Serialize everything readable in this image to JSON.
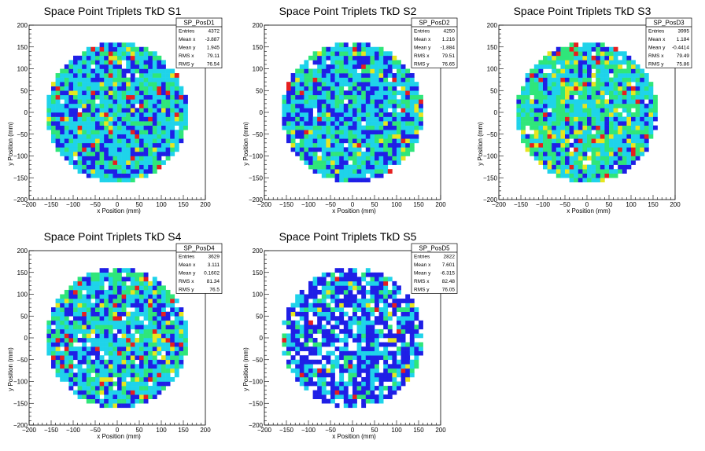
{
  "chart_data": [
    {
      "type": "heatmap",
      "title": "Space Point Triplets TkD S1",
      "xlabel": "x Position (mm)",
      "ylabel": "y Position (mm)",
      "xlim": [
        -200,
        200
      ],
      "ylim": [
        -200,
        200
      ],
      "xticks": [
        "−200",
        "−150",
        "−100",
        "−50",
        "0",
        "50",
        "100",
        "150",
        "200"
      ],
      "yticks": [
        "−200",
        "−150",
        "−100",
        "−50",
        "0",
        "50",
        "100",
        "150",
        "200"
      ],
      "region": {
        "shape": "disc",
        "radius_mm": 160
      },
      "stats": {
        "name": "SP_PosD1",
        "rows": [
          [
            "Entries",
            "4372"
          ],
          [
            "Mean x",
            "-3.887"
          ],
          [
            "Mean y",
            "1.945"
          ],
          [
            "RMS x",
            "79.11"
          ],
          [
            "RMS y",
            "76.54"
          ]
        ]
      },
      "color_weights": {
        "blue": 0.24,
        "cyan": 0.42,
        "green": 0.24,
        "yellow": 0.05,
        "red": 0.03,
        "white": 0.02
      }
    },
    {
      "type": "heatmap",
      "title": "Space Point Triplets TkD S2",
      "xlabel": "x Position (mm)",
      "ylabel": "y Position (mm)",
      "xlim": [
        -200,
        200
      ],
      "ylim": [
        -200,
        200
      ],
      "xticks": [
        "−200",
        "−150",
        "−100",
        "−50",
        "0",
        "50",
        "100",
        "150",
        "200"
      ],
      "yticks": [
        "−200",
        "−150",
        "−100",
        "−50",
        "0",
        "50",
        "100",
        "150",
        "200"
      ],
      "region": {
        "shape": "disc",
        "radius_mm": 160
      },
      "stats": {
        "name": "SP_PosD2",
        "rows": [
          [
            "Entries",
            "4250"
          ],
          [
            "Mean x",
            "1.216"
          ],
          [
            "Mean y",
            "-1.884"
          ],
          [
            "RMS x",
            "79.51"
          ],
          [
            "RMS y",
            "76.65"
          ]
        ]
      },
      "color_weights": {
        "blue": 0.28,
        "cyan": 0.42,
        "green": 0.21,
        "yellow": 0.03,
        "red": 0.02,
        "white": 0.04
      }
    },
    {
      "type": "heatmap",
      "title": "Space Point Triplets TkD S3",
      "xlabel": "x Position (mm)",
      "ylabel": "y Position (mm)",
      "xlim": [
        -200,
        200
      ],
      "ylim": [
        -200,
        200
      ],
      "xticks": [
        "−200",
        "−150",
        "−100",
        "−50",
        "0",
        "50",
        "100",
        "150",
        "200"
      ],
      "yticks": [
        "−200",
        "−150",
        "−100",
        "−50",
        "0",
        "50",
        "100",
        "150",
        "200"
      ],
      "region": {
        "shape": "disc",
        "radius_mm": 160
      },
      "stats": {
        "name": "SP_PosD3",
        "rows": [
          [
            "Entries",
            "3995"
          ],
          [
            "Mean x",
            "1.184"
          ],
          [
            "Mean y",
            "-0.4414"
          ],
          [
            "RMS x",
            "79.49"
          ],
          [
            "RMS y",
            "75.86"
          ]
        ]
      },
      "color_weights": {
        "blue": 0.12,
        "cyan": 0.36,
        "green": 0.34,
        "yellow": 0.1,
        "red": 0.04,
        "white": 0.04
      }
    },
    {
      "type": "heatmap",
      "title": "Space Point Triplets TkD S4",
      "xlabel": "x Position (mm)",
      "ylabel": "y Position (mm)",
      "xlim": [
        -200,
        200
      ],
      "ylim": [
        -200,
        200
      ],
      "xticks": [
        "−200",
        "−150",
        "−100",
        "−50",
        "0",
        "50",
        "100",
        "150",
        "200"
      ],
      "yticks": [
        "−200",
        "−150",
        "−100",
        "−50",
        "0",
        "50",
        "100",
        "150",
        "200"
      ],
      "region": {
        "shape": "disc",
        "radius_mm": 160
      },
      "stats": {
        "name": "SP_PosD4",
        "rows": [
          [
            "Entries",
            "3629"
          ],
          [
            "Mean x",
            "3.111"
          ],
          [
            "Mean y",
            "0.1602"
          ],
          [
            "RMS x",
            "81.34"
          ],
          [
            "RMS y",
            "76.5"
          ]
        ]
      },
      "color_weights": {
        "blue": 0.22,
        "cyan": 0.38,
        "green": 0.24,
        "yellow": 0.06,
        "red": 0.04,
        "white": 0.06
      }
    },
    {
      "type": "heatmap",
      "title": "Space Point Triplets TkD S5",
      "xlabel": "x Position (mm)",
      "ylabel": "y Position (mm)",
      "xlim": [
        -200,
        200
      ],
      "ylim": [
        -200,
        200
      ],
      "xticks": [
        "−200",
        "−150",
        "−100",
        "−50",
        "0",
        "50",
        "100",
        "150",
        "200"
      ],
      "yticks": [
        "−200",
        "−150",
        "−100",
        "−50",
        "0",
        "50",
        "100",
        "150",
        "200"
      ],
      "region": {
        "shape": "disc",
        "radius_mm": 160
      },
      "stats": {
        "name": "SP_PosD5",
        "rows": [
          [
            "Entries",
            "2822"
          ],
          [
            "Mean x",
            "7.601"
          ],
          [
            "Mean y",
            "-6.315"
          ],
          [
            "RMS x",
            "82.48"
          ],
          [
            "RMS y",
            "76.05"
          ]
        ]
      },
      "color_weights": {
        "blue": 0.42,
        "cyan": 0.26,
        "green": 0.1,
        "yellow": 0.02,
        "red": 0.02,
        "white": 0.18
      }
    }
  ],
  "colors": {
    "blue": "#1f1fe6",
    "cyan": "#1fd3ea",
    "green": "#2fe67a",
    "yellow": "#e6e61f",
    "red": "#e61f1f",
    "white": "#ffffff",
    "frame": "#000000",
    "background": "#ffffff"
  }
}
